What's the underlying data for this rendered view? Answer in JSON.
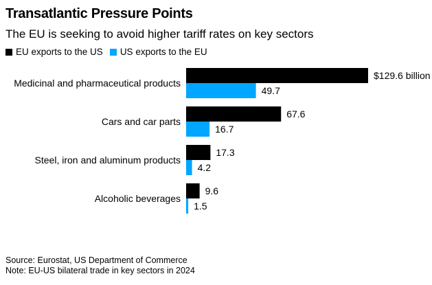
{
  "chart_data": {
    "type": "bar",
    "orientation": "horizontal",
    "title": "Transatlantic Pressure Points",
    "subtitle": "The EU is seeking to avoid higher tariff rates on key sectors",
    "categories": [
      "Medicinal and pharmaceutical products",
      "Cars and car parts",
      "Steel, iron and aluminum products",
      "Alcoholic beverages"
    ],
    "series": [
      {
        "name": "EU exports to the US",
        "color": "#000000",
        "values": [
          129.6,
          67.6,
          17.3,
          9.6
        ],
        "labels": [
          "$129.6 billion",
          "67.6",
          "17.3",
          "9.6"
        ]
      },
      {
        "name": "US exports to the EU",
        "color": "#00a6ff",
        "values": [
          49.7,
          16.7,
          4.2,
          1.5
        ],
        "labels": [
          "49.7",
          "16.7",
          "4.2",
          "1.5"
        ]
      }
    ],
    "xlabel": "",
    "ylabel": "",
    "unit": "billion USD",
    "xlim": [
      0,
      129.6
    ],
    "grid": false,
    "legend_position": "top-left"
  },
  "footer": {
    "source": "Source: Eurostat, US Department of Commerce",
    "note": "Note: EU-US bilateral trade in key sectors in 2024"
  }
}
